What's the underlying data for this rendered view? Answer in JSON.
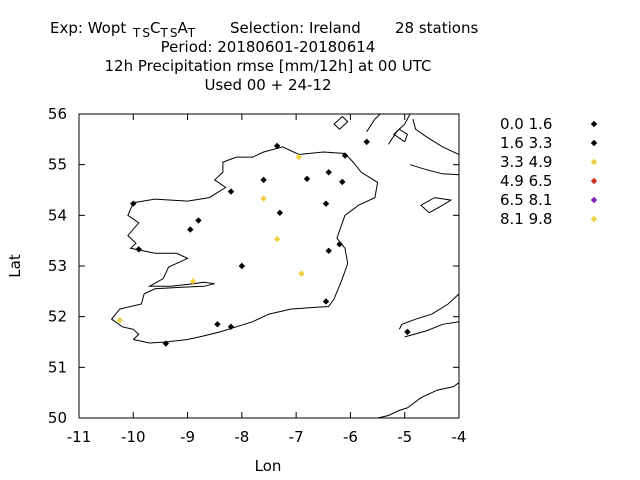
{
  "header": {
    "exp_prefix": "Exp: Wopt",
    "exp_parts": [
      {
        "big": "",
        "sub": "T"
      },
      {
        "big": "",
        "sub": "S"
      },
      {
        "big": "C",
        "sub": "T"
      },
      {
        "big": "",
        "sub": "S"
      },
      {
        "big": "A",
        "sub": "T"
      }
    ],
    "selection": "Selection: Ireland",
    "stations": "28 stations",
    "period": "Period: 20180601-20180614",
    "param": "12h Precipitation rmse [mm/12h] at  00 UTC",
    "used": "Used  00 + 24-12"
  },
  "chart_data": {
    "type": "scatter",
    "xlabel": "Lon",
    "ylabel": "Lat",
    "xlim": [
      -11,
      -4
    ],
    "ylim": [
      50,
      56
    ],
    "xticks": [
      "-11",
      "-10",
      "-9",
      "-8",
      "-7",
      "-6",
      "-5",
      "-4"
    ],
    "yticks": [
      "50",
      "51",
      "52",
      "53",
      "54",
      "55",
      "56"
    ],
    "legend_position": "right",
    "legend": [
      {
        "label": "0.0 1.6",
        "color": "#000000"
      },
      {
        "label": "1.6 3.3",
        "color": "#000000"
      },
      {
        "label": "3.3 4.9",
        "color": "#f0d040"
      },
      {
        "label": "4.9 6.5",
        "color": "#d03020"
      },
      {
        "label": "6.5 8.1",
        "color": "#8020c0"
      },
      {
        "label": "8.1 9.8",
        "color": "#f0d040"
      }
    ],
    "points": [
      {
        "lon": -7.35,
        "lat": 55.37,
        "cls": 1
      },
      {
        "lon": -6.95,
        "lat": 55.15,
        "cls": 2
      },
      {
        "lon": -6.1,
        "lat": 55.18,
        "cls": 1
      },
      {
        "lon": -5.7,
        "lat": 55.45,
        "cls": 1
      },
      {
        "lon": -7.6,
        "lat": 54.7,
        "cls": 1
      },
      {
        "lon": -6.8,
        "lat": 54.72,
        "cls": 1
      },
      {
        "lon": -6.4,
        "lat": 54.85,
        "cls": 1
      },
      {
        "lon": -6.15,
        "lat": 54.66,
        "cls": 1
      },
      {
        "lon": -8.2,
        "lat": 54.47,
        "cls": 1
      },
      {
        "lon": -7.6,
        "lat": 54.33,
        "cls": 2
      },
      {
        "lon": -6.45,
        "lat": 54.23,
        "cls": 1
      },
      {
        "lon": -7.3,
        "lat": 54.05,
        "cls": 1
      },
      {
        "lon": -10.0,
        "lat": 54.23,
        "cls": 1
      },
      {
        "lon": -8.8,
        "lat": 53.9,
        "cls": 1
      },
      {
        "lon": -8.95,
        "lat": 53.72,
        "cls": 1
      },
      {
        "lon": -7.35,
        "lat": 53.53,
        "cls": 2
      },
      {
        "lon": -6.2,
        "lat": 53.43,
        "cls": 1
      },
      {
        "lon": -6.4,
        "lat": 53.3,
        "cls": 1
      },
      {
        "lon": -9.9,
        "lat": 53.33,
        "cls": 1
      },
      {
        "lon": -8.0,
        "lat": 53.0,
        "cls": 1
      },
      {
        "lon": -6.9,
        "lat": 52.85,
        "cls": 2
      },
      {
        "lon": -8.9,
        "lat": 52.7,
        "cls": 2
      },
      {
        "lon": -6.45,
        "lat": 52.3,
        "cls": 1
      },
      {
        "lon": -8.45,
        "lat": 51.85,
        "cls": 1
      },
      {
        "lon": -8.2,
        "lat": 51.8,
        "cls": 1
      },
      {
        "lon": -10.25,
        "lat": 51.93,
        "cls": 2
      },
      {
        "lon": -9.4,
        "lat": 51.47,
        "cls": 1
      },
      {
        "lon": -4.95,
        "lat": 51.7,
        "cls": 1
      }
    ],
    "coastlines": [
      [
        [
          -10.0,
          51.55
        ],
        [
          -9.7,
          51.48
        ],
        [
          -9.4,
          51.5
        ],
        [
          -9.0,
          51.55
        ],
        [
          -8.7,
          51.62
        ],
        [
          -8.4,
          51.7
        ],
        [
          -8.1,
          51.8
        ],
        [
          -7.8,
          51.9
        ],
        [
          -7.5,
          52.05
        ],
        [
          -7.1,
          52.15
        ],
        [
          -6.7,
          52.18
        ],
        [
          -6.4,
          52.2
        ],
        [
          -6.3,
          52.35
        ],
        [
          -6.15,
          52.75
        ],
        [
          -6.05,
          53.05
        ],
        [
          -6.1,
          53.35
        ],
        [
          -6.25,
          53.55
        ],
        [
          -6.15,
          53.85
        ],
        [
          -6.1,
          54.0
        ],
        [
          -5.85,
          54.2
        ],
        [
          -5.55,
          54.35
        ],
        [
          -5.5,
          54.65
        ],
        [
          -5.8,
          54.85
        ],
        [
          -5.95,
          55.05
        ],
        [
          -6.1,
          55.22
        ],
        [
          -6.5,
          55.25
        ],
        [
          -6.95,
          55.2
        ],
        [
          -7.25,
          55.35
        ],
        [
          -7.6,
          55.25
        ],
        [
          -7.8,
          55.15
        ],
        [
          -8.1,
          55.15
        ],
        [
          -8.35,
          55.05
        ],
        [
          -8.35,
          54.85
        ],
        [
          -8.5,
          54.7
        ],
        [
          -8.3,
          54.55
        ],
        [
          -8.6,
          54.35
        ],
        [
          -9.0,
          54.28
        ],
        [
          -9.6,
          54.32
        ],
        [
          -10.0,
          54.25
        ],
        [
          -10.1,
          54.0
        ],
        [
          -9.9,
          53.85
        ],
        [
          -10.1,
          53.6
        ],
        [
          -9.95,
          53.45
        ],
        [
          -10.05,
          53.35
        ],
        [
          -9.6,
          53.25
        ],
        [
          -9.2,
          53.25
        ],
        [
          -9.0,
          53.15
        ],
        [
          -9.35,
          52.98
        ],
        [
          -9.45,
          52.75
        ],
        [
          -9.7,
          52.6
        ],
        [
          -9.3,
          52.6
        ],
        [
          -8.9,
          52.65
        ],
        [
          -8.7,
          52.68
        ],
        [
          -8.5,
          52.65
        ],
        [
          -8.7,
          52.6
        ],
        [
          -9.1,
          52.58
        ],
        [
          -9.6,
          52.55
        ],
        [
          -9.8,
          52.45
        ],
        [
          -9.85,
          52.25
        ],
        [
          -10.25,
          52.15
        ],
        [
          -10.4,
          51.95
        ],
        [
          -10.2,
          51.8
        ],
        [
          -10.0,
          51.75
        ],
        [
          -9.9,
          51.65
        ],
        [
          -10.0,
          51.55
        ]
      ],
      [
        [
          -4.95,
          50.2
        ],
        [
          -4.7,
          50.4
        ],
        [
          -4.4,
          50.55
        ],
        [
          -4.1,
          50.62
        ],
        [
          -4.0,
          50.7
        ]
      ],
      [
        [
          -5.5,
          50.0
        ],
        [
          -5.3,
          50.05
        ],
        [
          -5.1,
          50.15
        ],
        [
          -4.95,
          50.2
        ]
      ],
      [
        [
          -5.0,
          51.6
        ],
        [
          -4.6,
          51.72
        ],
        [
          -4.3,
          51.85
        ],
        [
          -4.0,
          51.9
        ]
      ],
      [
        [
          -5.1,
          51.75
        ],
        [
          -5.05,
          51.85
        ],
        [
          -4.8,
          51.95
        ],
        [
          -4.5,
          52.05
        ],
        [
          -4.2,
          52.25
        ],
        [
          -4.0,
          52.45
        ]
      ],
      [
        [
          -5.3,
          55.4
        ],
        [
          -5.15,
          55.65
        ],
        [
          -5.0,
          55.8
        ],
        [
          -4.9,
          56.0
        ]
      ],
      [
        [
          -5.7,
          55.65
        ],
        [
          -5.55,
          55.9
        ],
        [
          -5.45,
          56.0
        ]
      ],
      [
        [
          -4.9,
          55.0
        ],
        [
          -4.6,
          54.9
        ],
        [
          -4.3,
          54.82
        ],
        [
          -4.0,
          54.8
        ]
      ],
      [
        [
          -4.0,
          55.2
        ],
        [
          -4.3,
          55.35
        ],
        [
          -4.6,
          55.55
        ],
        [
          -4.8,
          55.7
        ],
        [
          -4.85,
          55.9
        ]
      ],
      [
        [
          -4.55,
          54.05
        ],
        [
          -4.3,
          54.2
        ],
        [
          -4.15,
          54.3
        ],
        [
          -4.45,
          54.35
        ],
        [
          -4.7,
          54.2
        ],
        [
          -4.55,
          54.05
        ]
      ],
      [
        [
          -6.2,
          55.7
        ],
        [
          -6.05,
          55.85
        ],
        [
          -6.15,
          55.95
        ],
        [
          -6.3,
          55.8
        ],
        [
          -6.2,
          55.7
        ]
      ],
      [
        [
          -5.0,
          55.45
        ],
        [
          -5.2,
          55.6
        ],
        [
          -5.1,
          55.7
        ],
        [
          -4.95,
          55.6
        ],
        [
          -5.0,
          55.45
        ]
      ]
    ]
  }
}
